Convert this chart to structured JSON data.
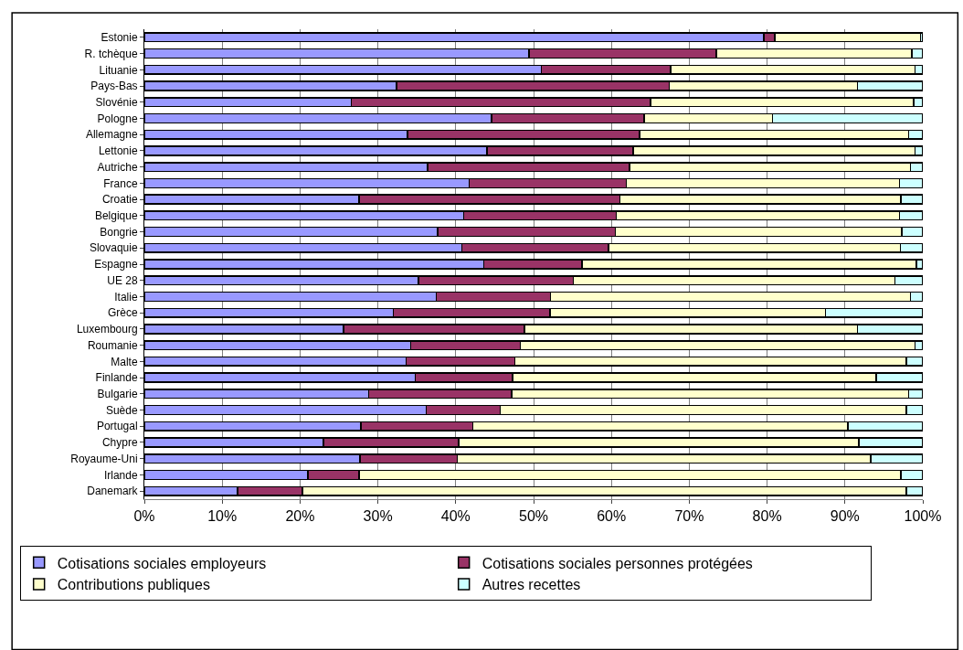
{
  "chart_data": {
    "type": "bar",
    "orientation": "horizontal",
    "stacked": true,
    "grid": "x",
    "legend": "bottom",
    "categories": [
      "Estonie",
      "R. tchèque",
      "Lituanie",
      "Pays-Bas",
      "Slovénie",
      "Pologne",
      "Allemagne",
      "Lettonie",
      "Autriche",
      "France",
      "Croatie",
      "Belgique",
      "Bongrie",
      "Slovaquie",
      "Espagne",
      "UE 28",
      "Italie",
      "Grèce",
      "Luxembourg",
      "Roumanie",
      "Malte",
      "Finlande",
      "Bulgarie",
      "Suède",
      "Portugal",
      "Chypre",
      "Royaume-Uni",
      "Irlande",
      "Danemark"
    ],
    "series": [
      {
        "name": "Cotisations sociales employeurs",
        "color": "#9999ff",
        "values": [
          79.6,
          49.4,
          51.0,
          32.4,
          26.6,
          44.6,
          33.8,
          44.0,
          36.4,
          41.7,
          27.6,
          41.0,
          37.7,
          40.8,
          43.6,
          35.2,
          37.5,
          32.0,
          25.6,
          34.2,
          33.6,
          34.8,
          28.8,
          36.2,
          27.8,
          23.0,
          27.7,
          21.0,
          12.0
        ]
      },
      {
        "name": "Cotisations sociales personnes protégées",
        "color": "#993366",
        "values": [
          1.4,
          24.1,
          16.6,
          35.0,
          38.4,
          19.6,
          29.8,
          18.8,
          25.9,
          20.2,
          33.5,
          19.6,
          22.8,
          18.8,
          12.6,
          19.9,
          14.7,
          20.1,
          23.2,
          14.1,
          14.0,
          12.5,
          18.4,
          9.5,
          14.4,
          17.4,
          12.5,
          6.6,
          8.3
        ]
      },
      {
        "name": "Contributions publiques",
        "color": "#ffffcc",
        "values": [
          18.7,
          25.1,
          31.4,
          24.2,
          33.8,
          16.5,
          34.6,
          36.2,
          36.1,
          35.1,
          36.1,
          36.4,
          36.8,
          37.5,
          43.0,
          41.3,
          46.2,
          35.4,
          42.8,
          50.7,
          50.3,
          46.7,
          51.0,
          52.2,
          48.2,
          51.4,
          53.1,
          69.6,
          77.6
        ]
      },
      {
        "name": "Autres recettes",
        "color": "#ccffff",
        "values": [
          0.3,
          1.4,
          1.0,
          8.4,
          1.2,
          19.3,
          1.8,
          1.0,
          1.6,
          3.0,
          2.8,
          3.0,
          2.7,
          2.9,
          0.8,
          3.6,
          1.6,
          12.5,
          8.4,
          1.0,
          2.1,
          6.0,
          1.8,
          2.1,
          9.6,
          8.2,
          6.7,
          2.8,
          2.1
        ]
      }
    ],
    "xlim": [
      0,
      100
    ],
    "xticks": [
      {
        "value": 0,
        "label": "0%"
      },
      {
        "value": 10,
        "label": "10%"
      },
      {
        "value": 20,
        "label": "20%"
      },
      {
        "value": 30,
        "label": "30%"
      },
      {
        "value": 40,
        "label": "40%"
      },
      {
        "value": 50,
        "label": "50%"
      },
      {
        "value": 60,
        "label": "60%"
      },
      {
        "value": 70,
        "label": "70%"
      },
      {
        "value": 80,
        "label": "80%"
      },
      {
        "value": 90,
        "label": "90%"
      },
      {
        "value": 100,
        "label": "100%"
      }
    ]
  }
}
